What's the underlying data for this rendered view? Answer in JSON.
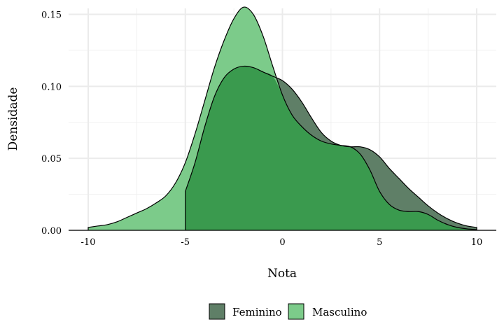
{
  "chart_data": {
    "type": "area",
    "title": "",
    "xlabel": "Nota",
    "ylabel": "Densidade",
    "xlim": [
      -10,
      10
    ],
    "ylim": [
      0,
      0.155
    ],
    "x_ticks": [
      -10,
      -5,
      0,
      5,
      10
    ],
    "x_tick_labels": [
      "-10",
      "-5",
      "0",
      "5",
      "10"
    ],
    "y_ticks": [
      0,
      0.05,
      0.1,
      0.15
    ],
    "y_tick_labels": [
      "0.00",
      "0.05",
      "0.10",
      "0.15"
    ],
    "grid": true,
    "legend_position": "bottom",
    "series": [
      {
        "name": "Feminino",
        "color": "#5f7f67",
        "x": [
          -5.0,
          -4.5,
          -4.0,
          -3.5,
          -3.0,
          -2.5,
          -2.0,
          -1.5,
          -1.0,
          -0.5,
          0.0,
          0.5,
          1.0,
          1.5,
          2.0,
          2.5,
          3.0,
          3.5,
          4.0,
          4.5,
          5.0,
          5.5,
          6.0,
          6.5,
          7.0,
          7.5,
          8.0,
          8.5,
          9.0,
          9.5,
          10.0
        ],
        "y": [
          0.027,
          0.047,
          0.072,
          0.093,
          0.106,
          0.112,
          0.114,
          0.113,
          0.11,
          0.107,
          0.104,
          0.098,
          0.089,
          0.078,
          0.068,
          0.062,
          0.059,
          0.058,
          0.058,
          0.056,
          0.051,
          0.043,
          0.036,
          0.029,
          0.023,
          0.017,
          0.012,
          0.008,
          0.005,
          0.003,
          0.002
        ]
      },
      {
        "name": "Masculino",
        "color": "#7ccb8a",
        "x": [
          -10.0,
          -9.5,
          -9.0,
          -8.5,
          -8.0,
          -7.5,
          -7.0,
          -6.5,
          -6.0,
          -5.5,
          -5.0,
          -4.5,
          -4.0,
          -3.5,
          -3.0,
          -2.5,
          -2.0,
          -1.5,
          -1.0,
          -0.5,
          0.0,
          0.5,
          1.0,
          1.5,
          2.0,
          2.5,
          3.0,
          3.5,
          4.0,
          4.5,
          5.0,
          5.5,
          6.0,
          6.5,
          7.0,
          7.5,
          8.0,
          8.5,
          9.0,
          9.5,
          10.0
        ],
        "y": [
          0.002,
          0.003,
          0.004,
          0.006,
          0.009,
          0.012,
          0.015,
          0.019,
          0.024,
          0.033,
          0.047,
          0.067,
          0.09,
          0.113,
          0.132,
          0.147,
          0.155,
          0.15,
          0.135,
          0.114,
          0.094,
          0.08,
          0.072,
          0.066,
          0.062,
          0.06,
          0.059,
          0.058,
          0.053,
          0.042,
          0.027,
          0.018,
          0.014,
          0.013,
          0.013,
          0.011,
          0.007,
          0.004,
          0.002,
          0.001,
          0.0005
        ]
      }
    ],
    "fill_colors": {
      "area": "#3a9a4e"
    }
  }
}
